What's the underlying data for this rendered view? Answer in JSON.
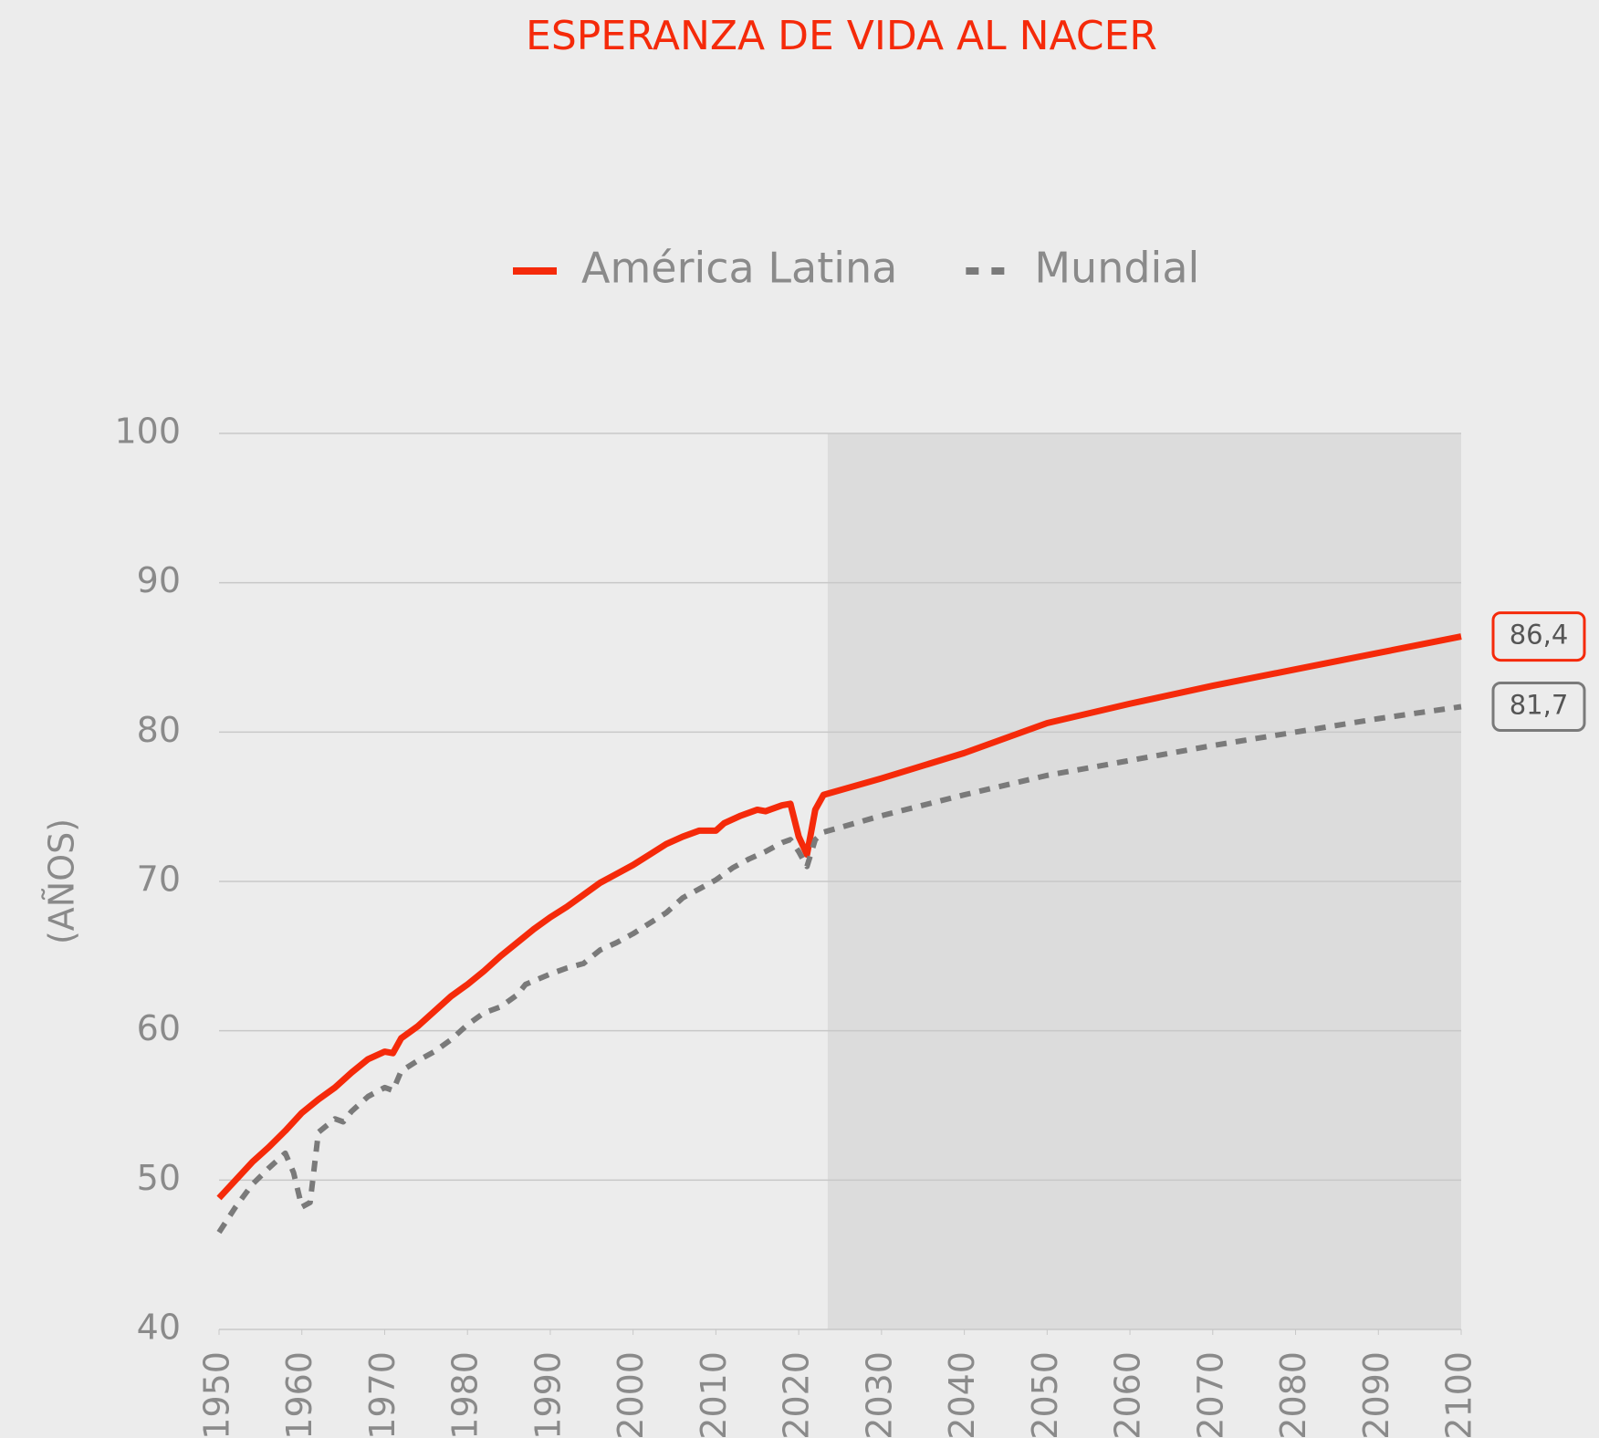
{
  "chart_data": {
    "type": "line",
    "title": "ESPERANZA DE VIDA AL NACER",
    "y_label": "(AÑOS)",
    "ylim": [
      40,
      100
    ],
    "yticks": [
      40,
      50,
      60,
      70,
      80,
      90,
      100
    ],
    "xlim": [
      1950,
      2100
    ],
    "xticks": [
      1950,
      1960,
      1970,
      1980,
      1990,
      2000,
      2010,
      2020,
      2030,
      2040,
      2050,
      2060,
      2070,
      2080,
      2090,
      2100
    ],
    "grid": true,
    "legend": "top",
    "projection_start": 2023.5,
    "series": [
      {
        "name": "América Latina",
        "color": "#f52a0a",
        "dash": false,
        "end_label": "86,4",
        "x": [
          1950,
          1952,
          1954,
          1956,
          1958,
          1960,
          1962,
          1964,
          1966,
          1968,
          1970,
          1971,
          1972,
          1974,
          1976,
          1978,
          1980,
          1982,
          1984,
          1986,
          1988,
          1990,
          1992,
          1994,
          1996,
          1998,
          2000,
          2002,
          2004,
          2006,
          2008,
          2010,
          2011,
          2013,
          2015,
          2016,
          2018,
          2019,
          2020,
          2021,
          2022,
          2023,
          2030,
          2040,
          2050,
          2060,
          2070,
          2080,
          2090,
          2100
        ],
        "values": [
          48.8,
          50,
          51.2,
          52.2,
          53.3,
          54.5,
          55.4,
          56.2,
          57.2,
          58.1,
          58.6,
          58.5,
          59.5,
          60.3,
          61.3,
          62.3,
          63.1,
          64.0,
          65.0,
          65.9,
          66.8,
          67.6,
          68.3,
          69.1,
          69.9,
          70.5,
          71.1,
          71.8,
          72.5,
          73.0,
          73.4,
          73.4,
          73.9,
          74.4,
          74.8,
          74.7,
          75.1,
          75.2,
          73.0,
          71.8,
          74.8,
          75.8,
          76.9,
          78.6,
          80.6,
          81.9,
          83.1,
          84.2,
          85.3,
          86.4
        ]
      },
      {
        "name": "Mundial",
        "color": "#7a7a7a",
        "dash": true,
        "end_label": "81,7",
        "x": [
          1950,
          1952,
          1954,
          1956,
          1958,
          1959,
          1960,
          1961,
          1962,
          1964,
          1965,
          1966,
          1968,
          1970,
          1971,
          1972,
          1974,
          1976,
          1978,
          1980,
          1982,
          1984,
          1986,
          1987,
          1990,
          1992,
          1994,
          1996,
          1998,
          2000,
          2002,
          2004,
          2006,
          2008,
          2010,
          2012,
          2014,
          2016,
          2018,
          2019,
          2020,
          2021,
          2022,
          2023,
          2030,
          2040,
          2050,
          2060,
          2070,
          2080,
          2090,
          2100
        ],
        "values": [
          46.5,
          48.2,
          49.7,
          50.8,
          51.8,
          50.5,
          48.2,
          48.5,
          53.2,
          54.1,
          53.9,
          54.6,
          55.6,
          56.2,
          56.0,
          57.3,
          58.0,
          58.6,
          59.4,
          60.4,
          61.2,
          61.6,
          62.4,
          63.1,
          63.8,
          64.2,
          64.5,
          65.4,
          65.9,
          66.5,
          67.2,
          67.9,
          68.9,
          69.5,
          70.1,
          70.9,
          71.5,
          72.0,
          72.6,
          72.8,
          72.0,
          71.0,
          72.8,
          73.3,
          74.4,
          75.8,
          77.1,
          78.1,
          79.1,
          80.0,
          80.9,
          81.7
        ]
      }
    ]
  }
}
